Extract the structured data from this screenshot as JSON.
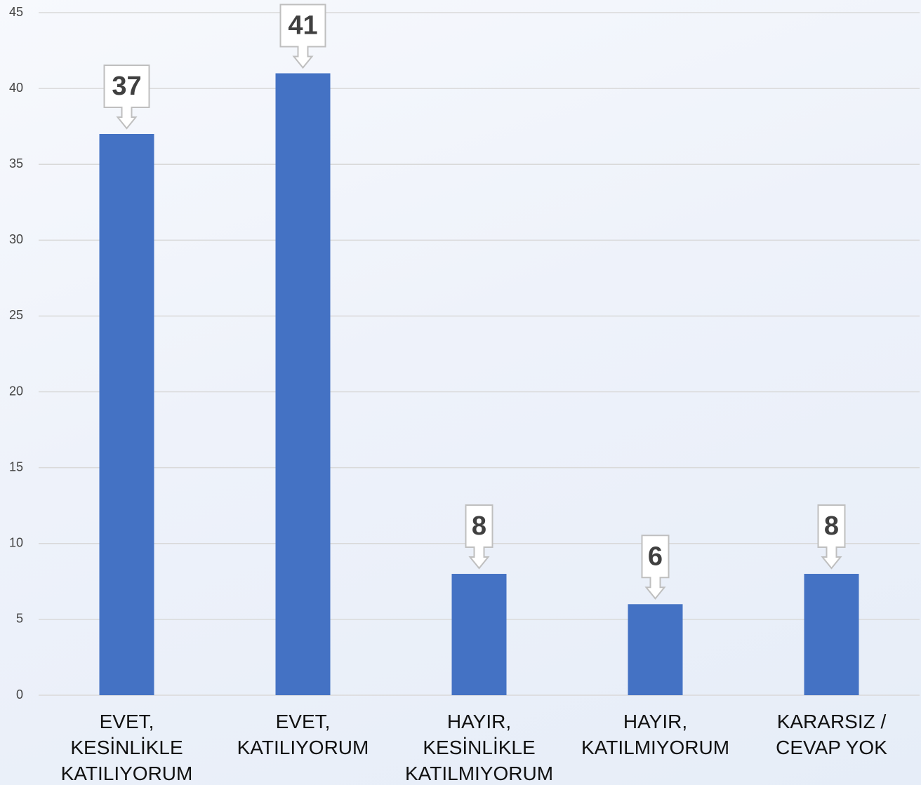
{
  "chart_data": {
    "type": "bar",
    "categories": [
      "EVET,\nKESİNLİKLE\nKATILIYORUM",
      "EVET,\nKATILIYORUM",
      "HAYIR,\nKESİNLİKLE\nKATILMIYORUM",
      "HAYIR,\nKATILMIYORUM",
      "KARARSIZ /\nCEVAP YOK"
    ],
    "values": [
      37,
      41,
      8,
      6,
      8
    ],
    "color": "#4472c4",
    "ylim": [
      0,
      45
    ],
    "yticks": [
      0,
      5,
      10,
      15,
      20,
      25,
      30,
      35,
      40,
      45
    ],
    "grid": true
  }
}
